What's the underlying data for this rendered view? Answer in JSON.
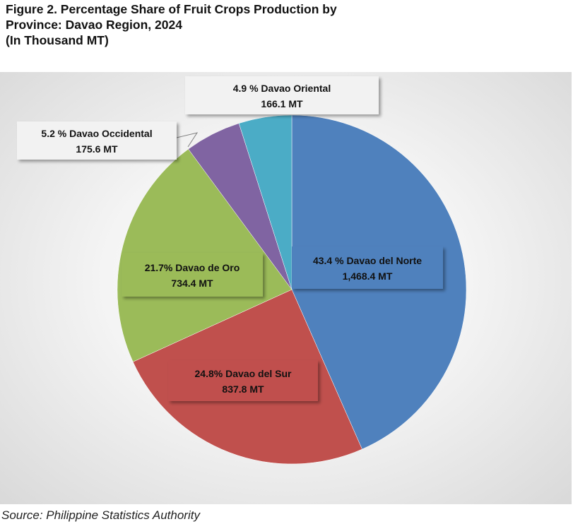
{
  "title": {
    "line1": "Figure 2. Percentage Share of Fruit Crops Production by",
    "line2": "Province: Davao Region, 2024",
    "line3": "(In Thousand MT)"
  },
  "source": "Source: Philippine Statistics Authority",
  "chart_data": {
    "type": "pie",
    "unit": "Thousand MT",
    "start_angle_deg": 0,
    "direction": "clockwise",
    "slices": [
      {
        "name": "Davao del Norte",
        "percent": 43.4,
        "value": 1468.4,
        "label_pct": "43.4 % Davao del Norte",
        "label_val": "1,468.4 MT",
        "color": "#4F81BD"
      },
      {
        "name": "Davao del Sur",
        "percent": 24.8,
        "value": 837.8,
        "label_pct": "24.8% Davao del Sur",
        "label_val": "837.8 MT",
        "color": "#C0504D"
      },
      {
        "name": "Davao de Oro",
        "percent": 21.7,
        "value": 734.4,
        "label_pct": "21.7% Davao de Oro",
        "label_val": "734.4 MT",
        "color": "#9BBB59"
      },
      {
        "name": "Davao Occidental",
        "percent": 5.2,
        "value": 175.6,
        "label_pct": "5.2 % Davao Occidental",
        "label_val": "175.6 MT",
        "color": "#8064A2"
      },
      {
        "name": "Davao Oriental",
        "percent": 4.9,
        "value": 166.1,
        "label_pct": "4.9 % Davao  Oriental",
        "label_val": "166.1 MT",
        "color": "#4BACC6"
      }
    ]
  }
}
